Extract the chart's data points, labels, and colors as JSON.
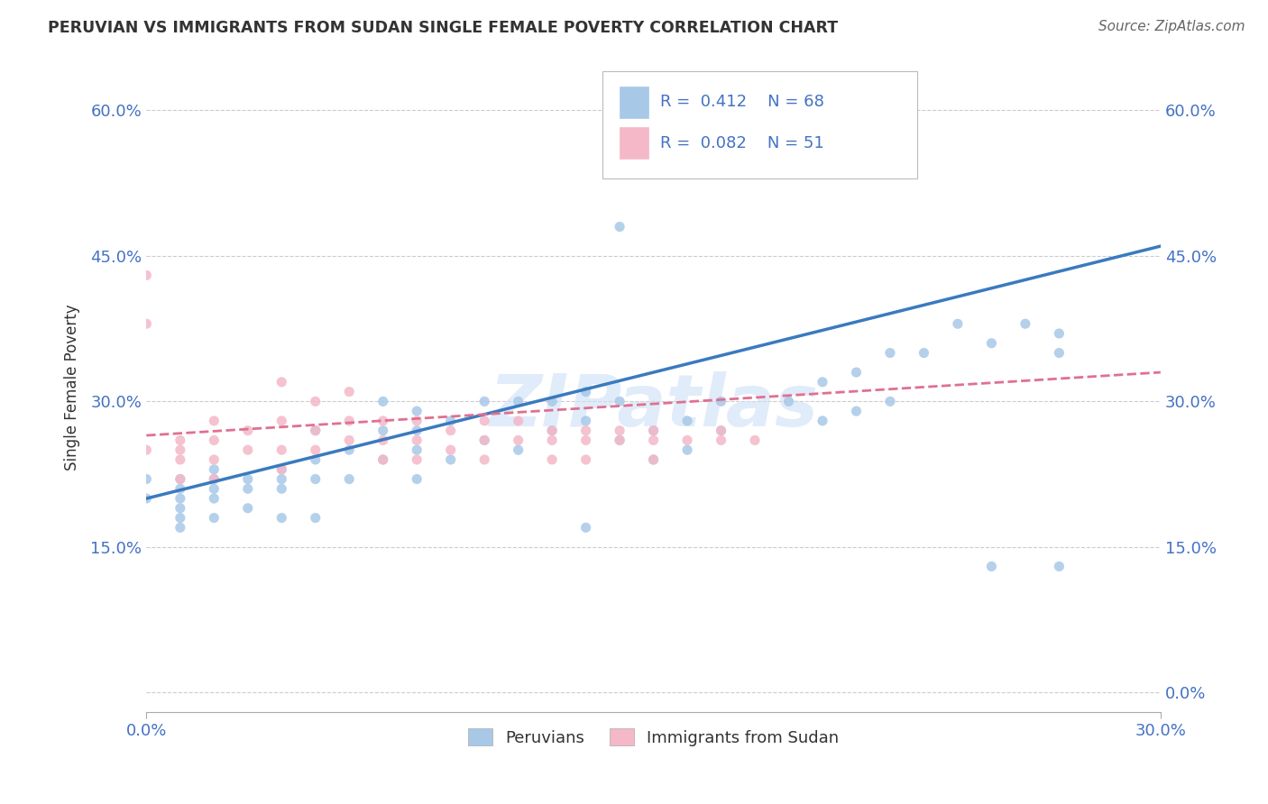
{
  "title": "PERUVIAN VS IMMIGRANTS FROM SUDAN SINGLE FEMALE POVERTY CORRELATION CHART",
  "source": "Source: ZipAtlas.com",
  "ylabel": "Single Female Poverty",
  "legend_label1": "Peruvians",
  "legend_label2": "Immigrants from Sudan",
  "r1": 0.412,
  "n1": 68,
  "r2": 0.082,
  "n2": 51,
  "xlim": [
    0.0,
    0.3
  ],
  "ylim": [
    -0.02,
    0.65
  ],
  "yticks": [
    0.0,
    0.15,
    0.3,
    0.45,
    0.6
  ],
  "color_blue": "#a8c8e8",
  "color_pink": "#f4b8c8",
  "line_blue": "#3a7abf",
  "line_pink": "#e07090",
  "watermark": "ZIPatlas",
  "blue_scatter_x": [
    0.0,
    0.0,
    0.01,
    0.01,
    0.01,
    0.01,
    0.01,
    0.01,
    0.02,
    0.02,
    0.02,
    0.02,
    0.02,
    0.03,
    0.03,
    0.03,
    0.04,
    0.04,
    0.04,
    0.04,
    0.05,
    0.05,
    0.05,
    0.05,
    0.06,
    0.06,
    0.07,
    0.07,
    0.07,
    0.08,
    0.08,
    0.08,
    0.08,
    0.09,
    0.09,
    0.1,
    0.1,
    0.11,
    0.11,
    0.12,
    0.12,
    0.13,
    0.13,
    0.13,
    0.14,
    0.14,
    0.15,
    0.15,
    0.16,
    0.16,
    0.17,
    0.17,
    0.19,
    0.2,
    0.2,
    0.21,
    0.21,
    0.22,
    0.22,
    0.23,
    0.24,
    0.25,
    0.25,
    0.26,
    0.27,
    0.27,
    0.27,
    0.14
  ],
  "blue_scatter_y": [
    0.22,
    0.2,
    0.22,
    0.21,
    0.2,
    0.19,
    0.18,
    0.17,
    0.23,
    0.22,
    0.21,
    0.2,
    0.18,
    0.22,
    0.21,
    0.19,
    0.23,
    0.22,
    0.21,
    0.18,
    0.27,
    0.24,
    0.22,
    0.18,
    0.25,
    0.22,
    0.3,
    0.27,
    0.24,
    0.29,
    0.27,
    0.25,
    0.22,
    0.28,
    0.24,
    0.3,
    0.26,
    0.3,
    0.25,
    0.3,
    0.27,
    0.31,
    0.28,
    0.17,
    0.3,
    0.26,
    0.27,
    0.24,
    0.28,
    0.25,
    0.3,
    0.27,
    0.3,
    0.32,
    0.28,
    0.33,
    0.29,
    0.35,
    0.3,
    0.35,
    0.38,
    0.36,
    0.13,
    0.38,
    0.37,
    0.35,
    0.13,
    0.48
  ],
  "pink_scatter_x": [
    0.0,
    0.0,
    0.0,
    0.01,
    0.01,
    0.01,
    0.01,
    0.02,
    0.02,
    0.02,
    0.02,
    0.03,
    0.03,
    0.04,
    0.04,
    0.04,
    0.04,
    0.05,
    0.05,
    0.05,
    0.06,
    0.06,
    0.06,
    0.07,
    0.07,
    0.07,
    0.08,
    0.08,
    0.08,
    0.09,
    0.09,
    0.1,
    0.1,
    0.1,
    0.11,
    0.11,
    0.12,
    0.12,
    0.12,
    0.13,
    0.13,
    0.13,
    0.14,
    0.14,
    0.15,
    0.15,
    0.15,
    0.16,
    0.17,
    0.17,
    0.18
  ],
  "pink_scatter_y": [
    0.43,
    0.38,
    0.25,
    0.26,
    0.25,
    0.24,
    0.22,
    0.28,
    0.26,
    0.24,
    0.22,
    0.27,
    0.25,
    0.32,
    0.28,
    0.25,
    0.23,
    0.3,
    0.27,
    0.25,
    0.31,
    0.28,
    0.26,
    0.28,
    0.26,
    0.24,
    0.28,
    0.26,
    0.24,
    0.27,
    0.25,
    0.28,
    0.26,
    0.24,
    0.28,
    0.26,
    0.27,
    0.26,
    0.24,
    0.27,
    0.26,
    0.24,
    0.27,
    0.26,
    0.27,
    0.26,
    0.24,
    0.26,
    0.27,
    0.26,
    0.26
  ],
  "blue_line_x": [
    0.0,
    0.3
  ],
  "blue_line_y": [
    0.2,
    0.46
  ],
  "pink_line_x": [
    0.0,
    0.3
  ],
  "pink_line_y": [
    0.265,
    0.33
  ]
}
